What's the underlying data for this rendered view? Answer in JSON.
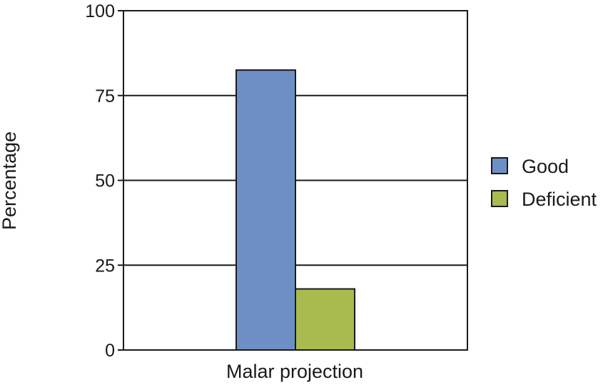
{
  "chart_data": {
    "type": "bar",
    "categories": [
      "Malar projection"
    ],
    "series": [
      {
        "name": "Good",
        "values": [
          82.5
        ],
        "color": "#6e8fc6"
      },
      {
        "name": "Deficient",
        "values": [
          18
        ],
        "color": "#a9bb4e"
      }
    ],
    "ylabel": "Percentage",
    "xlabel": "",
    "ylim": [
      0,
      100
    ],
    "yticks": [
      0,
      25,
      50,
      75,
      100
    ],
    "grid": true,
    "legend_position": "right"
  }
}
